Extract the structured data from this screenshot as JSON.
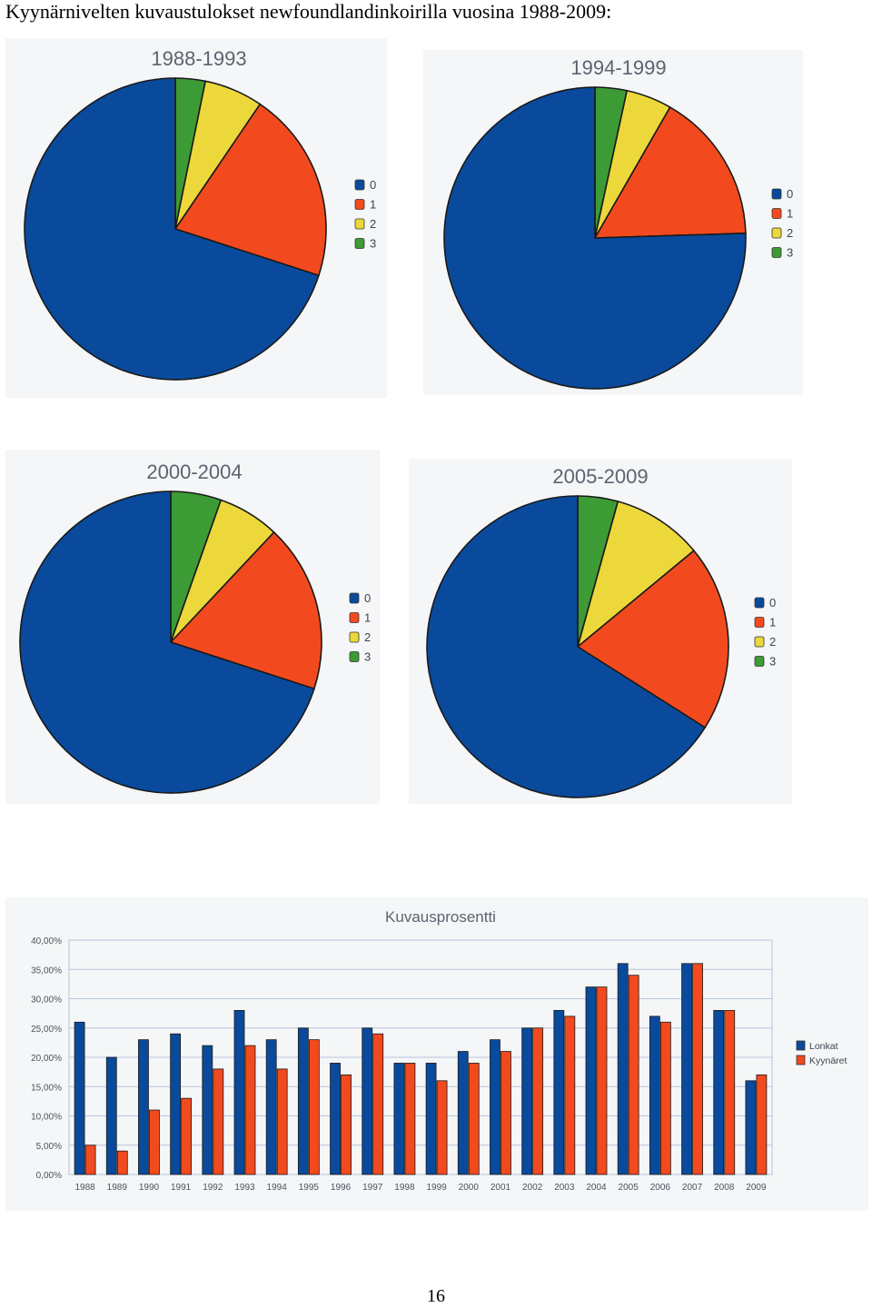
{
  "page": {
    "heading": "Kyynärnivelten kuvaustulokset newfoundlandinkoirilla vuosina 1988-2009:",
    "page_number": "16"
  },
  "colors": {
    "grade_0": "#0a4a9c",
    "grade_1": "#f24a1e",
    "grade_2": "#ecd83a",
    "grade_3": "#3d9b35",
    "lonkat": "#0a4a9c",
    "kyynaret": "#f24a1e"
  },
  "chart_data": [
    {
      "type": "pie",
      "title": "1988-1993",
      "labels": [
        "0",
        "1",
        "2",
        "3"
      ],
      "values": [
        70.0,
        20.5,
        6.3,
        3.2
      ]
    },
    {
      "type": "pie",
      "title": "1994-1999",
      "labels": [
        "0",
        "1",
        "2",
        "3"
      ],
      "values": [
        75.5,
        16.2,
        4.9,
        3.4
      ]
    },
    {
      "type": "pie",
      "title": "2000-2004",
      "labels": [
        "0",
        "1",
        "2",
        "3"
      ],
      "values": [
        70.0,
        18.0,
        6.6,
        5.4
      ]
    },
    {
      "type": "pie",
      "title": "2005-2009",
      "labels": [
        "0",
        "1",
        "2",
        "3"
      ],
      "values": [
        66.0,
        20.0,
        9.7,
        4.3
      ]
    },
    {
      "type": "bar",
      "title": "Kuvausprosentti",
      "categories": [
        "1988",
        "1989",
        "1990",
        "1991",
        "1992",
        "1993",
        "1994",
        "1995",
        "1996",
        "1997",
        "1998",
        "1999",
        "2000",
        "2001",
        "2002",
        "2003",
        "2004",
        "2005",
        "2006",
        "2007",
        "2008",
        "2009"
      ],
      "series": [
        {
          "name": "Lonkat",
          "values": [
            26,
            20,
            23,
            24,
            22,
            28,
            23,
            25,
            19,
            25,
            19,
            19,
            21,
            23,
            25,
            28,
            32,
            36,
            27,
            36,
            28,
            16
          ]
        },
        {
          "name": "Kyynäret",
          "values": [
            5,
            4,
            11,
            13,
            18,
            22,
            18,
            23,
            17,
            24,
            19,
            16,
            19,
            21,
            25,
            27,
            32,
            34,
            26,
            36,
            28,
            17
          ]
        }
      ],
      "ylim": [
        0,
        40
      ],
      "yticks": [
        "0,00%",
        "5,00%",
        "10,00%",
        "15,00%",
        "20,00%",
        "25,00%",
        "30,00%",
        "35,00%",
        "40,00%"
      ],
      "grid": true,
      "legend_position": "right"
    }
  ]
}
